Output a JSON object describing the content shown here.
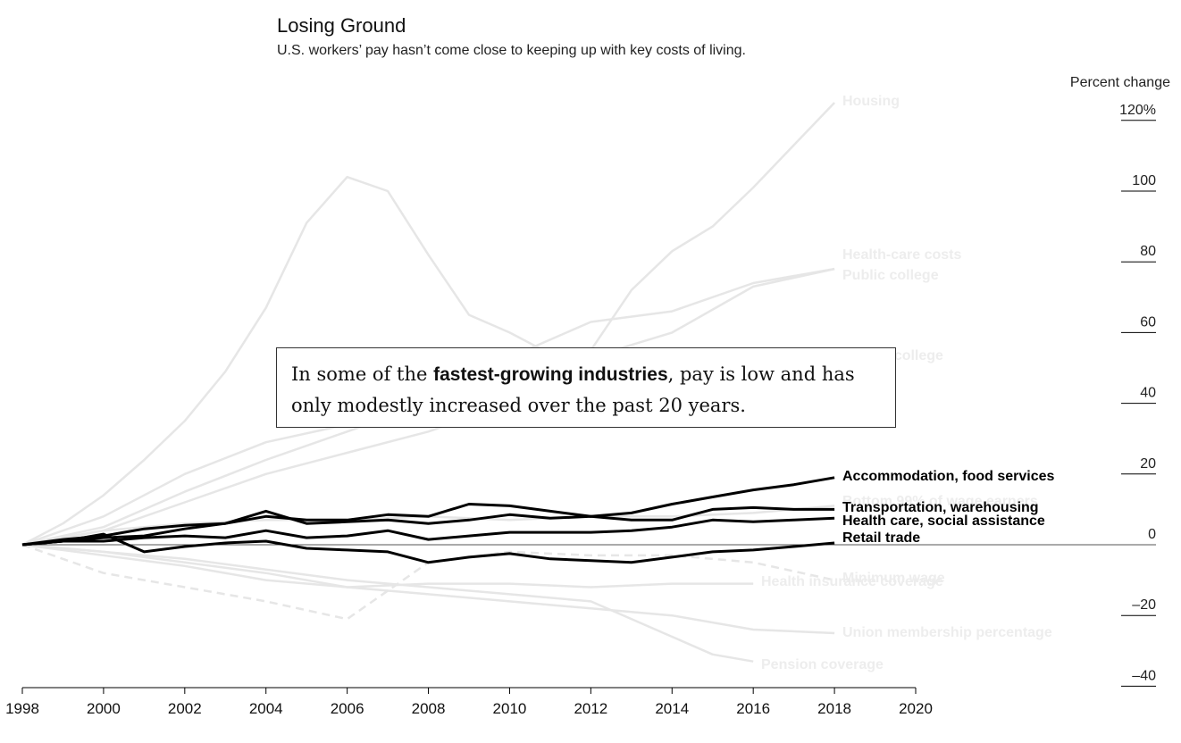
{
  "title": "Losing Ground",
  "subtitle": "U.S. workers’ pay hasn’t come close to keeping up with key costs of living.",
  "y_axis_label": "Percent change",
  "callout": {
    "before": "In some of the ",
    "bold": "fastest-growing industries",
    "after": ", pay is low and has only modestly increased over the past 20 years."
  },
  "colors": {
    "highlight": "#000000",
    "background_series": "#e6e6e6",
    "background_label": "#ededed",
    "axis": "#000000"
  },
  "chart_data": {
    "type": "line",
    "title": "Losing Ground",
    "subtitle": "U.S. workers’ pay hasn’t come close to keeping up with key costs of living.",
    "xlabel": "",
    "ylabel": "Percent change",
    "xlim": [
      1998,
      2020
    ],
    "ylim": [
      -40,
      120
    ],
    "x_ticks": [
      "1998",
      "2000",
      "2002",
      "2004",
      "2006",
      "2008",
      "2010",
      "2012",
      "2014",
      "2016",
      "2018",
      "2020"
    ],
    "y_ticks": [
      {
        "value": 120,
        "label": "120%"
      },
      {
        "value": 100,
        "label": "100"
      },
      {
        "value": 80,
        "label": "80"
      },
      {
        "value": 60,
        "label": "60"
      },
      {
        "value": 40,
        "label": "40"
      },
      {
        "value": 20,
        "label": "20"
      },
      {
        "value": 0,
        "label": "0"
      },
      {
        "value": -20,
        "label": "–20"
      },
      {
        "value": -40,
        "label": "–40"
      }
    ],
    "background_series": [
      {
        "name": "Housing",
        "x": [
          1998,
          1999,
          2000,
          2001,
          2002,
          2003,
          2004,
          2005,
          2006,
          2007,
          2008,
          2009,
          2010,
          2011,
          2012,
          2013,
          2014,
          2015,
          2016,
          2017,
          2018
        ],
        "values": [
          0,
          6,
          14,
          24,
          35,
          49,
          67,
          91,
          104,
          100,
          82,
          65,
          60,
          54,
          55,
          72,
          83,
          90,
          101,
          113,
          125
        ]
      },
      {
        "name": "Health-care costs",
        "x": [
          1998,
          2000,
          2002,
          2004,
          2006,
          2008,
          2010,
          2012,
          2014,
          2016,
          2018
        ],
        "values": [
          0,
          8,
          20,
          29,
          34,
          42,
          53,
          63,
          66,
          74,
          78
        ]
      },
      {
        "name": "Public college",
        "x": [
          1998,
          2000,
          2002,
          2004,
          2006,
          2008,
          2010,
          2012,
          2014,
          2016,
          2018
        ],
        "values": [
          0,
          5,
          15,
          24,
          32,
          40,
          48,
          53,
          60,
          73,
          78
        ]
      },
      {
        "name": "Private college",
        "x": [
          1998,
          2000,
          2002,
          2004,
          2006,
          2008,
          2010,
          2012,
          2014,
          2016,
          2018
        ],
        "values": [
          0,
          4,
          12,
          20,
          26,
          32,
          40,
          46,
          50,
          54,
          55
        ]
      },
      {
        "name": "Bottom 99% of wage earners",
        "x": [
          1998,
          2000,
          2002,
          2004,
          2006,
          2008,
          2010,
          2012,
          2014,
          2016,
          2018
        ],
        "values": [
          0,
          4,
          6,
          7,
          7,
          8,
          7,
          8,
          8,
          9,
          11
        ]
      },
      {
        "name": "Minimum wage",
        "x": [
          1998,
          2000,
          2002,
          2004,
          2006,
          2007,
          2008,
          2010,
          2012,
          2014,
          2016,
          2018
        ],
        "values": [
          0,
          -8,
          -12,
          -16,
          -21,
          -13,
          -5,
          -2,
          -3,
          -3,
          -5,
          -10
        ]
      },
      {
        "name": "Health insurance coverage",
        "x": [
          1998,
          2000,
          2002,
          2004,
          2006,
          2008,
          2010,
          2012,
          2014,
          2016
        ],
        "values": [
          0,
          -2,
          -5,
          -8,
          -12,
          -11,
          -11,
          -12,
          -11,
          -11
        ]
      },
      {
        "name": "Union membership percentage",
        "x": [
          1998,
          2000,
          2002,
          2004,
          2006,
          2008,
          2010,
          2012,
          2014,
          2016,
          2018
        ],
        "values": [
          0,
          -3,
          -6,
          -10,
          -12,
          -14,
          -16,
          -18,
          -20,
          -24,
          -25
        ]
      },
      {
        "name": "Pension coverage",
        "x": [
          1998,
          2000,
          2002,
          2004,
          2006,
          2008,
          2010,
          2012,
          2014,
          2015,
          2016
        ],
        "values": [
          0,
          -2,
          -4,
          -7,
          -10,
          -12,
          -14,
          -16,
          -26,
          -31,
          -33
        ]
      }
    ],
    "highlight_series": [
      {
        "name": "Accommodation, food services",
        "x": [
          1998,
          1999,
          2000,
          2001,
          2002,
          2003,
          2004,
          2005,
          2006,
          2007,
          2008,
          2009,
          2010,
          2011,
          2012,
          2013,
          2014,
          2015,
          2016,
          2017,
          2018
        ],
        "values": [
          0,
          1.5,
          2.5,
          4.5,
          5.5,
          6,
          8,
          7,
          7,
          8.5,
          8,
          11.5,
          11,
          9.5,
          8,
          9,
          11.5,
          13.5,
          15.5,
          17,
          19
        ]
      },
      {
        "name": "Transportation, warehousing",
        "x": [
          1998,
          1999,
          2000,
          2001,
          2002,
          2003,
          2004,
          2005,
          2006,
          2007,
          2008,
          2009,
          2010,
          2011,
          2012,
          2013,
          2014,
          2015,
          2016,
          2017,
          2018
        ],
        "values": [
          0,
          1,
          2,
          2.5,
          4.5,
          6,
          9.5,
          6,
          6.5,
          7,
          6,
          7,
          8.5,
          7.5,
          8,
          7,
          7,
          10,
          10.5,
          10,
          10
        ]
      },
      {
        "name": "Health care, social assistance",
        "x": [
          1998,
          1999,
          2000,
          2001,
          2002,
          2003,
          2004,
          2005,
          2006,
          2007,
          2008,
          2009,
          2010,
          2011,
          2012,
          2013,
          2014,
          2015,
          2016,
          2017,
          2018
        ],
        "values": [
          0,
          1,
          1,
          2,
          2.5,
          2,
          4,
          2,
          2.5,
          4,
          1.5,
          2.5,
          3.5,
          3.5,
          3.5,
          4,
          5,
          7,
          6.5,
          7,
          7.5
        ]
      },
      {
        "name": "Retail trade",
        "x": [
          1998,
          1999,
          2000,
          2001,
          2002,
          2003,
          2004,
          2005,
          2006,
          2007,
          2008,
          2009,
          2010,
          2011,
          2012,
          2013,
          2014,
          2015,
          2016,
          2017,
          2018
        ],
        "values": [
          0,
          1,
          3,
          -2,
          -0.5,
          0.5,
          1,
          -1,
          -1.5,
          -2,
          -5,
          -3.5,
          -2.5,
          -4,
          -4.5,
          -5,
          -3.5,
          -2,
          -1.5,
          -0.5,
          0.5
        ]
      }
    ]
  }
}
